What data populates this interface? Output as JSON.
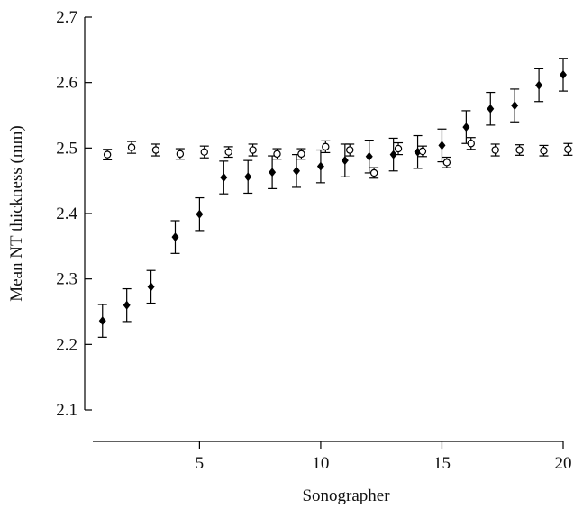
{
  "chart_data": {
    "type": "scatter",
    "xlabel": "Sonographer",
    "ylabel": "Mean NT thickness (mm)",
    "xlim": [
      0.6,
      20
    ],
    "ylim": [
      2.1,
      2.7
    ],
    "x_ticks": [
      "5",
      "10",
      "15",
      "20"
    ],
    "y_ticks": [
      "2.1",
      "2.2",
      "2.3",
      "2.4",
      "2.5",
      "2.6",
      "2.7"
    ],
    "series": [
      {
        "marker": "filled-diamond",
        "color": "#000000",
        "x": [
          1,
          2,
          3,
          4,
          5,
          6,
          7,
          8,
          9,
          10,
          11,
          12,
          13,
          14,
          15,
          16,
          17,
          18,
          19,
          20
        ],
        "y": [
          2.236,
          2.26,
          2.288,
          2.364,
          2.399,
          2.455,
          2.456,
          2.463,
          2.465,
          2.472,
          2.481,
          2.487,
          2.49,
          2.494,
          2.504,
          2.532,
          2.56,
          2.565,
          2.596,
          2.612
        ],
        "err": [
          0.025,
          0.025,
          0.025,
          0.025,
          0.025,
          0.025,
          0.025,
          0.025,
          0.025,
          0.025,
          0.025,
          0.025,
          0.025,
          0.025,
          0.025,
          0.025,
          0.025,
          0.025,
          0.025,
          0.025
        ]
      },
      {
        "marker": "open-circle",
        "color": "#000000",
        "x": [
          1.2,
          2.2,
          3.2,
          4.2,
          5.2,
          6.2,
          7.2,
          8.2,
          9.2,
          10.2,
          11.2,
          12.2,
          13.2,
          14.2,
          15.2,
          16.2,
          17.2,
          18.2,
          19.2,
          20.2
        ],
        "y": [
          2.49,
          2.501,
          2.497,
          2.491,
          2.494,
          2.494,
          2.497,
          2.491,
          2.491,
          2.502,
          2.497,
          2.462,
          2.499,
          2.495,
          2.478,
          2.507,
          2.497,
          2.497,
          2.496,
          2.498
        ],
        "err": [
          0.008,
          0.009,
          0.009,
          0.008,
          0.009,
          0.008,
          0.009,
          0.008,
          0.008,
          0.009,
          0.009,
          0.008,
          0.009,
          0.008,
          0.008,
          0.009,
          0.009,
          0.008,
          0.008,
          0.009
        ]
      }
    ]
  }
}
